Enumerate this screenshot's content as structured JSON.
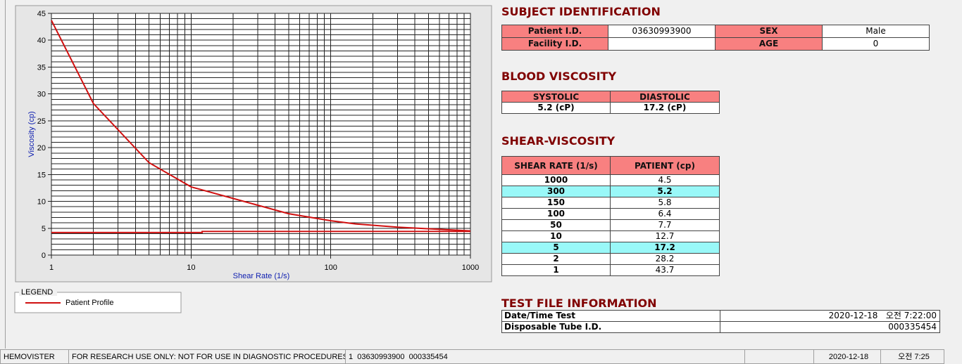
{
  "chart_data": {
    "type": "line",
    "xlabel": "Shear Rate (1/s)",
    "ylabel": "Viscosity (cp)",
    "xscale": "log",
    "xlim": [
      1,
      1000
    ],
    "xticks": [
      1,
      10,
      100,
      1000
    ],
    "ylim": [
      0,
      45
    ],
    "yticks": [
      0,
      5,
      10,
      15,
      20,
      25,
      30,
      35,
      40,
      45
    ],
    "grid": true,
    "minor_grid": true,
    "legend_title": "LEGEND",
    "series": [
      {
        "name": "Patient Profile",
        "color": "#d01010",
        "x": [
          1,
          2,
          5,
          10,
          50,
          100,
          150,
          300,
          1000
        ],
        "values": [
          43.7,
          28.2,
          17.2,
          12.7,
          7.7,
          6.4,
          5.8,
          5.2,
          4.5
        ]
      },
      {
        "color": "#d01010",
        "x": [
          1,
          12,
          12,
          1000
        ],
        "values": [
          4.2,
          4.2,
          4.4,
          4.4
        ]
      }
    ]
  },
  "subject": {
    "title": "SUBJECT IDENTIFICATION",
    "patient_id": {
      "label": "Patient I.D.",
      "value": "03630993900"
    },
    "facility_id": {
      "label": "Facility I.D."
    },
    "sex": {
      "label": "SEX",
      "value": "Male"
    },
    "age": {
      "label": "AGE",
      "value": "0"
    }
  },
  "blood_viscosity": {
    "title": "BLOOD VISCOSITY",
    "headers": [
      "SYSTOLIC",
      "DIASTOLIC"
    ],
    "values": [
      "5.2 (cP)",
      "17.2 (cP)"
    ]
  },
  "shear_viscosity": {
    "title": "SHEAR-VISCOSITY",
    "headers": [
      "SHEAR RATE (1/s)",
      "PATIENT (cp)"
    ],
    "rows": [
      [
        "1000",
        "4.5"
      ],
      [
        "300",
        "5.2"
      ],
      [
        "150",
        "5.8"
      ],
      [
        "100",
        "6.4"
      ],
      [
        "50",
        "7.7"
      ],
      [
        "10",
        "12.7"
      ],
      [
        "5",
        "17.2"
      ],
      [
        "2",
        "28.2"
      ],
      [
        "1",
        "43.7"
      ]
    ],
    "highlight_rows": [
      1,
      6
    ],
    "highlight_color": "#99f8f8"
  },
  "test_file": {
    "title": "TEST FILE INFORMATION",
    "rows": [
      [
        "Date/Time Test",
        "2020-12-18   오전 7:22:00"
      ],
      [
        "Disposable Tube I.D.",
        "000335454"
      ]
    ]
  },
  "status_bar": {
    "app": "HEMOVISTER",
    "notice": "FOR RESEARCH USE ONLY: NOT FOR USE IN DIAGNOSTIC PROCEDURES",
    "file": "1  03630993900  000335454",
    "date": "2020-12-18",
    "time": "오전 7:25"
  }
}
